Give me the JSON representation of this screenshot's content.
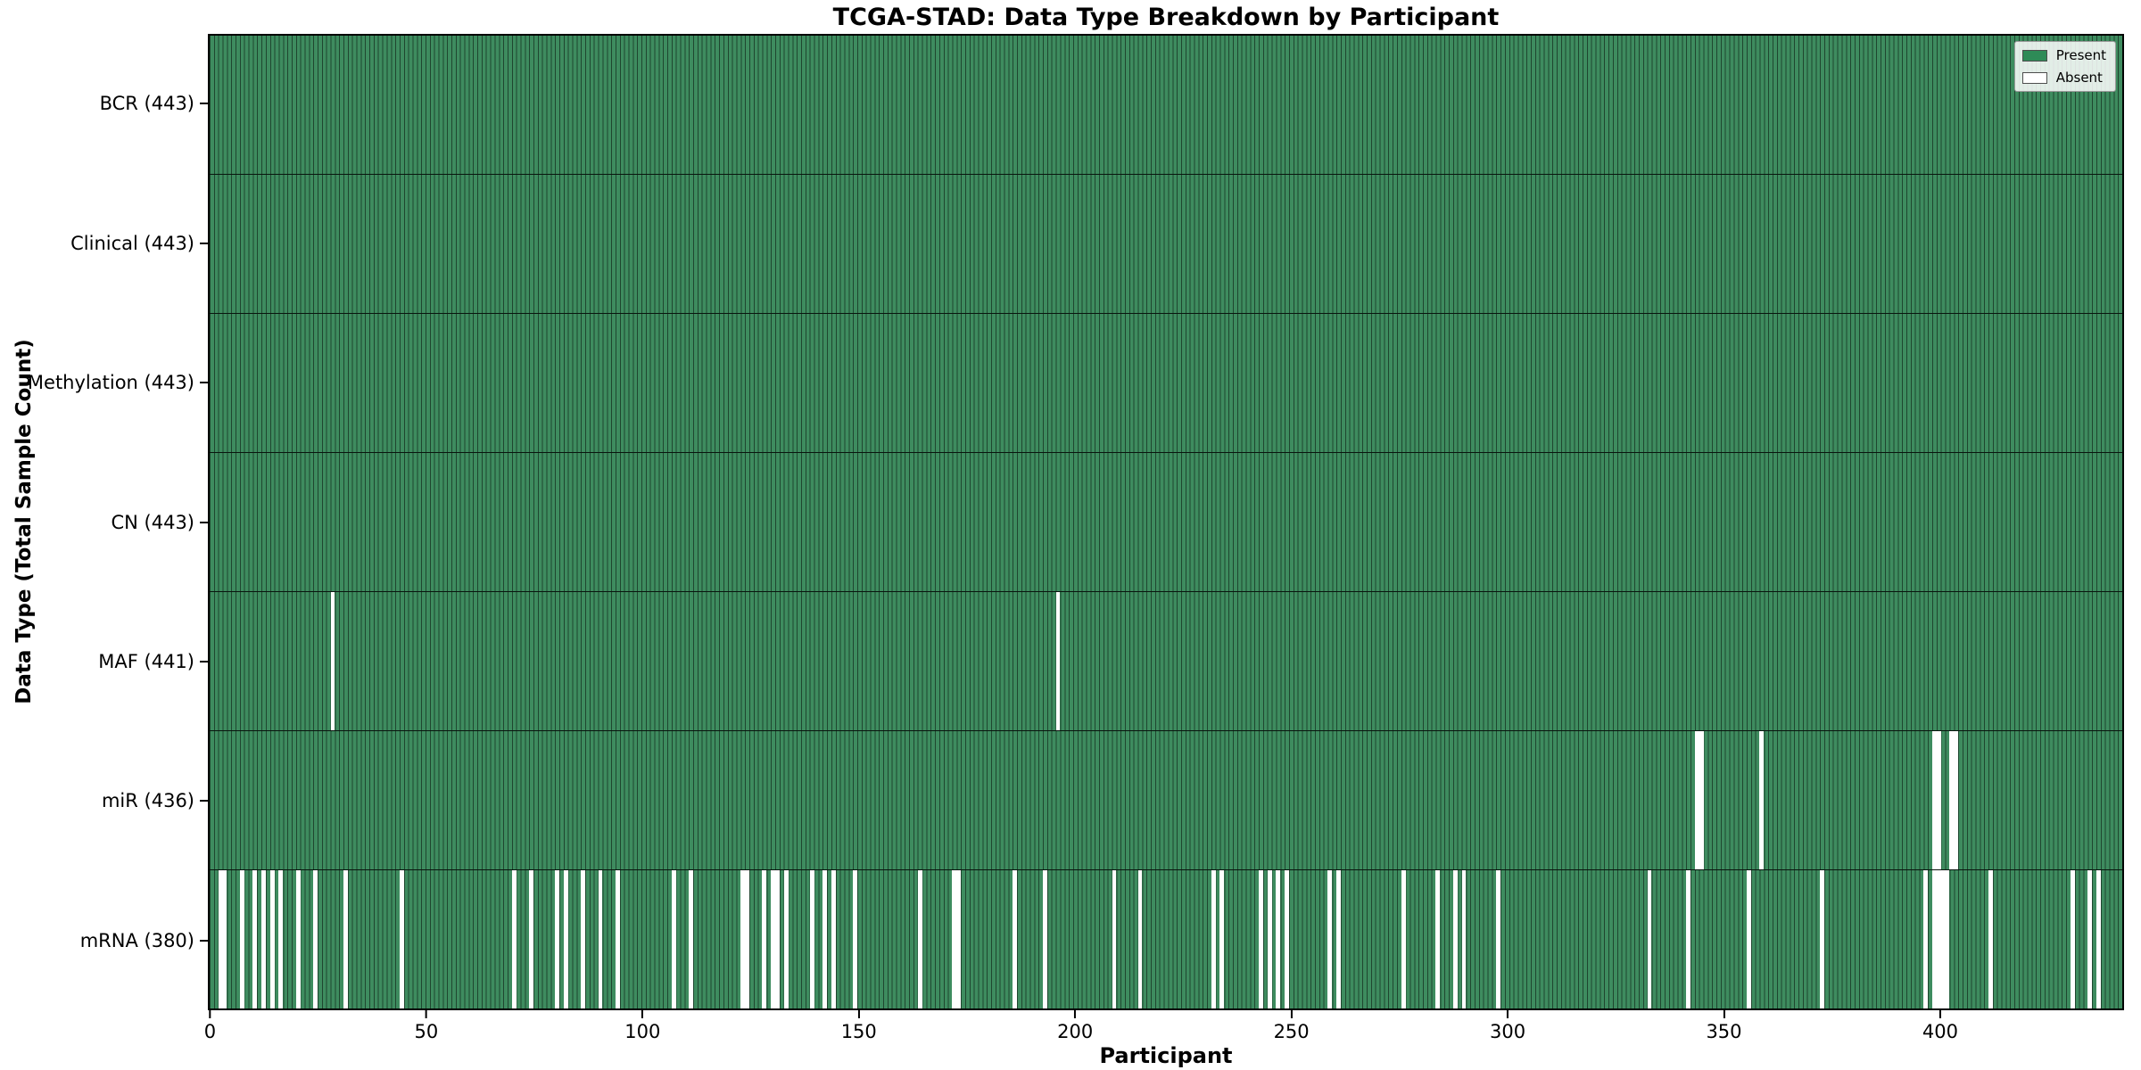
{
  "title": "TCGA-STAD: Data Type Breakdown by Participant",
  "xlabel": "Participant",
  "ylabel": "Data Type (Total Sample Count)",
  "colors": {
    "present": "#3E8C5F",
    "present_legend": "#2E8B57",
    "absent": "#FFFFFF",
    "bar_edge": "rgba(0,0,0,0.5)",
    "row_separator": "#000000"
  },
  "legend": {
    "position": "upper right",
    "entries": [
      {
        "label": "Present",
        "swatch": "#2E8B57"
      },
      {
        "label": "Absent",
        "swatch": "#FFFFFF"
      }
    ]
  },
  "chart_data": {
    "type": "heatmap",
    "title": "TCGA-STAD: Data Type Breakdown by Participant",
    "xlabel": "Participant",
    "ylabel": "Data Type (Total Sample Count)",
    "n_participants": 443,
    "xlim": [
      -0.5,
      442.5
    ],
    "x_ticks": [
      0,
      50,
      100,
      150,
      200,
      250,
      300,
      350,
      400
    ],
    "grid": false,
    "legend_entries": [
      "Present",
      "Absent"
    ],
    "rows": [
      {
        "label": "BCR (443)",
        "name": "BCR",
        "present_count": 443,
        "absent_participants": []
      },
      {
        "label": "Clinical (443)",
        "name": "Clinical",
        "present_count": 443,
        "absent_participants": []
      },
      {
        "label": "Methylation (443)",
        "name": "Methylation",
        "present_count": 443,
        "absent_participants": []
      },
      {
        "label": "CN (443)",
        "name": "CN",
        "present_count": 443,
        "absent_participants": []
      },
      {
        "label": "MAF (441)",
        "name": "MAF",
        "present_count": 441,
        "absent_participants": [
          28,
          196
        ]
      },
      {
        "label": "miR (436)",
        "name": "miR",
        "present_count": 436,
        "absent_participants": [
          344,
          345,
          359,
          399,
          400,
          403,
          404
        ]
      },
      {
        "label": "mRNA (380)",
        "name": "mRNA",
        "present_count": 380,
        "absent_participants": [
          2,
          3,
          7,
          10,
          12,
          14,
          16,
          20,
          24,
          31,
          44,
          70,
          74,
          80,
          82,
          86,
          90,
          94,
          107,
          111,
          123,
          124,
          128,
          130,
          131,
          133,
          139,
          142,
          144,
          149,
          164,
          172,
          173,
          186,
          193,
          209,
          215,
          232,
          234,
          243,
          245,
          247,
          249,
          259,
          261,
          276,
          284,
          288,
          290,
          298,
          333,
          342,
          356,
          373,
          397,
          399,
          400,
          401,
          402,
          412,
          431,
          435,
          437
        ]
      }
    ]
  }
}
